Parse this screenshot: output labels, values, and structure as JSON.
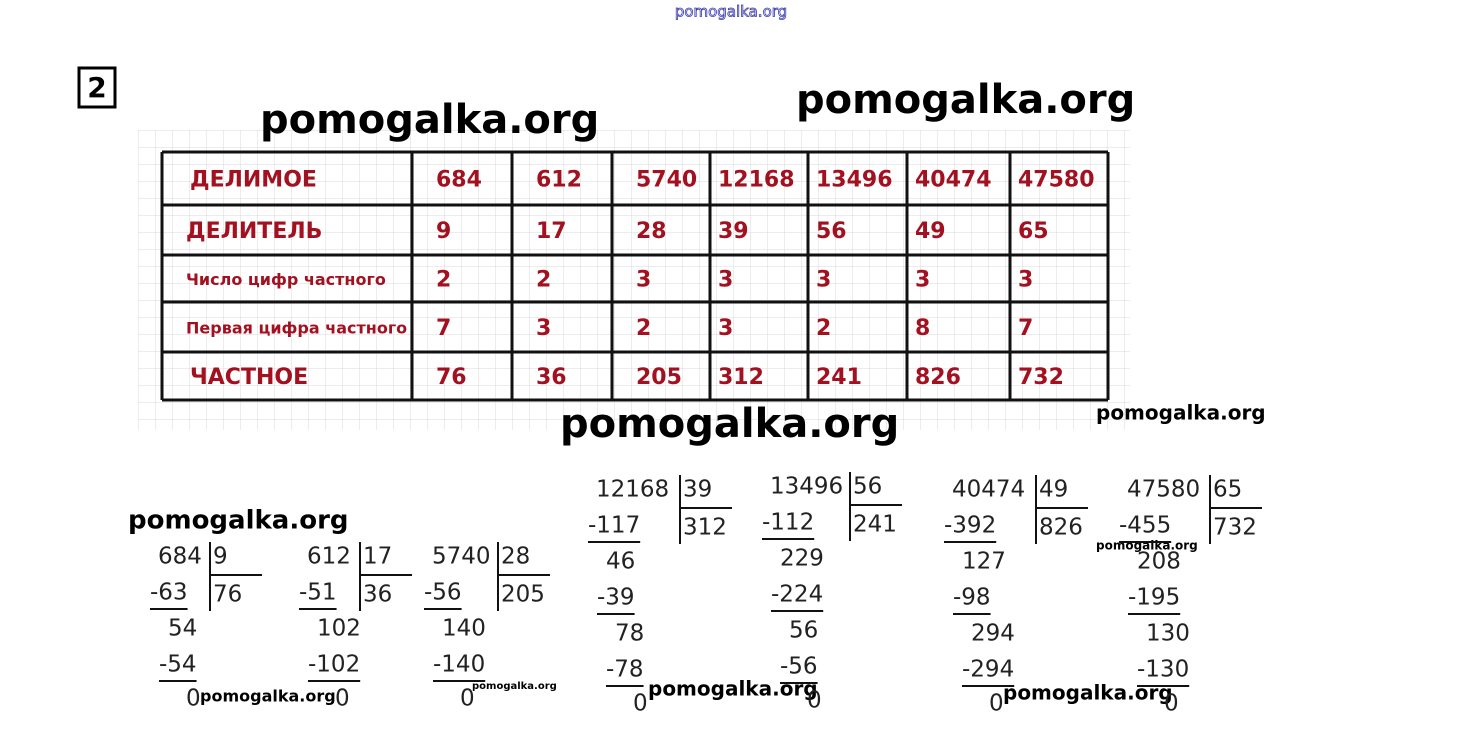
{
  "site_header": "pomogalka.org",
  "task_number": "2",
  "watermarks": [
    "pomogalka.org",
    "pomogalka.org",
    "pomogalka.org",
    "pomogalka.org",
    "pomogalka.org",
    "pomogalka.org",
    "pomogalka.org",
    "pomogalka.org",
    "pomogalka.org",
    "pomogalka.org"
  ],
  "table": {
    "rows": [
      [
        "ДЕЛИМОЕ",
        "684",
        "612",
        "5740",
        "12168",
        "13496",
        "40474",
        "47580"
      ],
      [
        "ДЕЛИТЕЛЬ",
        "9",
        "17",
        "28",
        "39",
        "56",
        "49",
        "65"
      ],
      [
        "Число цифр частного",
        "2",
        "2",
        "3",
        "3",
        "3",
        "3",
        "3"
      ],
      [
        "Первая цифра частного",
        "7",
        "3",
        "2",
        "3",
        "2",
        "8",
        "7"
      ],
      [
        "ЧАСТНОЕ",
        "76",
        "36",
        "205",
        "312",
        "241",
        "826",
        "732"
      ]
    ]
  },
  "divisions": [
    {
      "dividend": "684",
      "divisor": "9",
      "quotient": "76",
      "steps": [
        "-63",
        "54",
        "-54",
        "0"
      ]
    },
    {
      "dividend": "612",
      "divisor": "17",
      "quotient": "36",
      "steps": [
        "-51",
        "102",
        "-102",
        "0"
      ]
    },
    {
      "dividend": "5740",
      "divisor": "28",
      "quotient": "205",
      "steps": [
        "-56",
        "140",
        "-140",
        "0"
      ]
    },
    {
      "dividend": "12168",
      "divisor": "39",
      "quotient": "312",
      "steps": [
        "-117",
        "46",
        "-39",
        "78",
        "-78",
        "0"
      ]
    },
    {
      "dividend": "13496",
      "divisor": "56",
      "quotient": "241",
      "steps": [
        "-112",
        "229",
        "-224",
        "56",
        "-56",
        "0"
      ]
    },
    {
      "dividend": "40474",
      "divisor": "49",
      "quotient": "826",
      "steps": [
        "-392",
        "127",
        "-98",
        "294",
        "-294",
        "0"
      ]
    },
    {
      "dividend": "47580",
      "divisor": "65",
      "quotient": "732",
      "steps": [
        "-455",
        "208",
        "-195",
        "130",
        "-130",
        "0"
      ]
    }
  ]
}
